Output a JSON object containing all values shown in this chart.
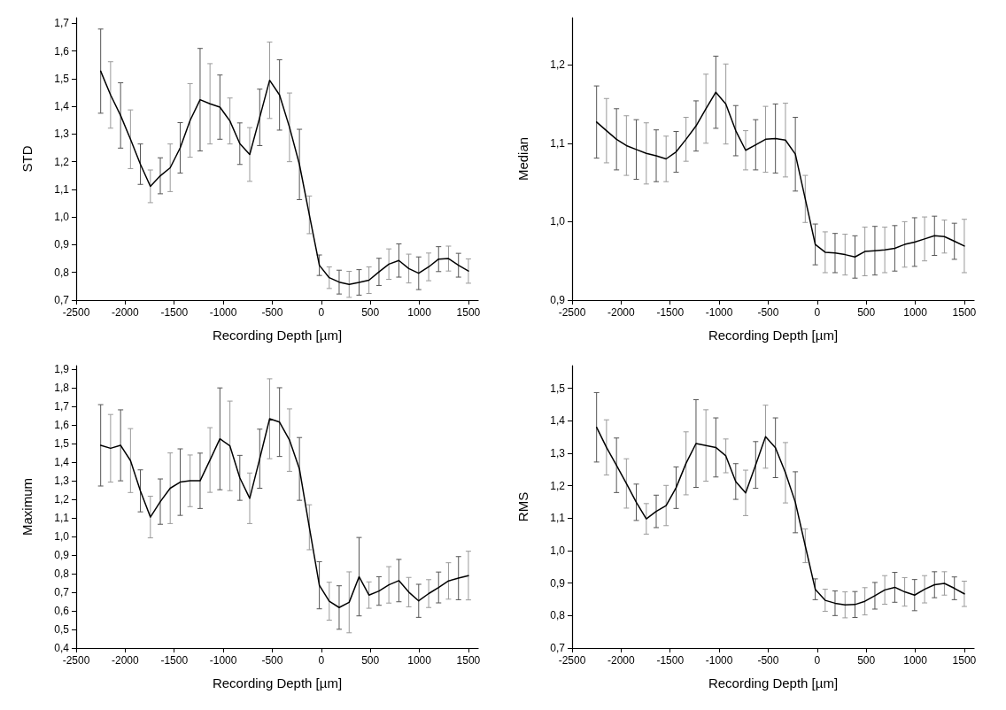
{
  "chart_data": [
    {
      "type": "line",
      "xlabel": "Recording Depth [µm]",
      "ylabel": "STD",
      "x": [
        -2250,
        -2149,
        -2047,
        -1946,
        -1845,
        -1743,
        -1642,
        -1541,
        -1439,
        -1338,
        -1236,
        -1135,
        -1034,
        -932,
        -831,
        -730,
        -628,
        -527,
        -426,
        -324,
        -223,
        -122,
        -20,
        81,
        182,
        284,
        385,
        486,
        588,
        689,
        791,
        892,
        993,
        1095,
        1196,
        1297,
        1399,
        1500
      ],
      "series": [
        {
          "color": "#000000",
          "values": [
            1.527,
            1.441,
            1.367,
            1.281,
            1.191,
            1.111,
            1.149,
            1.178,
            1.25,
            1.349,
            1.424,
            1.409,
            1.397,
            1.347,
            1.265,
            1.226,
            1.36,
            1.494,
            1.441,
            1.324,
            1.19,
            1.008,
            0.826,
            0.781,
            0.765,
            0.757,
            0.764,
            0.772,
            0.802,
            0.83,
            0.843,
            0.814,
            0.797,
            0.82,
            0.848,
            0.85,
            0.826,
            0.805
          ],
          "errors": [
            0.152,
            0.12,
            0.118,
            0.106,
            0.073,
            0.059,
            0.065,
            0.086,
            0.091,
            0.133,
            0.185,
            0.145,
            0.116,
            0.083,
            0.075,
            0.097,
            0.102,
            0.138,
            0.127,
            0.124,
            0.127,
            0.068,
            0.037,
            0.039,
            0.043,
            0.047,
            0.046,
            0.048,
            0.049,
            0.055,
            0.06,
            0.052,
            0.059,
            0.05,
            0.045,
            0.045,
            0.043,
            0.044
          ]
        }
      ],
      "xlim": [
        -2500,
        1600
      ],
      "xticks": [
        -2500,
        -2000,
        -1500,
        -1000,
        -500,
        0,
        500,
        1000,
        1500
      ],
      "ylim": [
        0.7,
        1.72
      ],
      "yticks": [
        {
          "value": 0.7,
          "label": "0,7"
        },
        {
          "value": 0.8,
          "label": "0,8"
        },
        {
          "value": 0.9,
          "label": "0,9"
        },
        {
          "value": 1.0,
          "label": "1,0"
        },
        {
          "value": 1.1,
          "label": "1,1"
        },
        {
          "value": 1.2,
          "label": "1,2"
        },
        {
          "value": 1.3,
          "label": "1,3"
        },
        {
          "value": 1.4,
          "label": "1,4"
        },
        {
          "value": 1.5,
          "label": "1,5"
        },
        {
          "value": 1.6,
          "label": "1,6"
        },
        {
          "value": 1.7,
          "label": "1,7"
        }
      ],
      "grid": false,
      "marker": "none",
      "line_style": "solid"
    },
    {
      "type": "line",
      "xlabel": "Recording Depth [µm]",
      "ylabel": "Median",
      "x": [
        -2250,
        -2149,
        -2047,
        -1946,
        -1845,
        -1743,
        -1642,
        -1541,
        -1439,
        -1338,
        -1236,
        -1135,
        -1034,
        -932,
        -831,
        -730,
        -628,
        -527,
        -426,
        -324,
        -223,
        -122,
        -20,
        81,
        182,
        284,
        385,
        486,
        588,
        689,
        791,
        892,
        993,
        1095,
        1196,
        1297,
        1399,
        1500
      ],
      "series": [
        {
          "color": "#000000",
          "values": [
            1.127,
            1.116,
            1.105,
            1.097,
            1.092,
            1.087,
            1.084,
            1.08,
            1.089,
            1.105,
            1.122,
            1.144,
            1.165,
            1.15,
            1.116,
            1.091,
            1.098,
            1.105,
            1.106,
            1.104,
            1.086,
            1.029,
            0.971,
            0.961,
            0.96,
            0.958,
            0.955,
            0.962,
            0.963,
            0.964,
            0.966,
            0.971,
            0.974,
            0.978,
            0.982,
            0.981,
            0.975,
            0.969
          ],
          "errors": [
            0.046,
            0.041,
            0.039,
            0.038,
            0.038,
            0.039,
            0.033,
            0.029,
            0.026,
            0.028,
            0.032,
            0.044,
            0.046,
            0.051,
            0.032,
            0.025,
            0.032,
            0.042,
            0.044,
            0.047,
            0.047,
            0.03,
            0.026,
            0.026,
            0.025,
            0.026,
            0.027,
            0.031,
            0.031,
            0.029,
            0.029,
            0.029,
            0.031,
            0.028,
            0.025,
            0.021,
            0.023,
            0.034
          ]
        }
      ],
      "xlim": [
        -2500,
        1600
      ],
      "xticks": [
        -2500,
        -2000,
        -1500,
        -1000,
        -500,
        0,
        500,
        1000,
        1500
      ],
      "ylim": [
        0.9,
        1.26
      ],
      "yticks": [
        {
          "value": 0.9,
          "label": "0,9"
        },
        {
          "value": 1.0,
          "label": "1,0"
        },
        {
          "value": 1.1,
          "label": "1,1"
        },
        {
          "value": 1.2,
          "label": "1,2"
        }
      ],
      "grid": false,
      "marker": "none",
      "line_style": "solid"
    },
    {
      "type": "line",
      "xlabel": "Recording Depth [µm]",
      "ylabel": "Maximum",
      "x": [
        -2250,
        -2149,
        -2047,
        -1946,
        -1845,
        -1743,
        -1642,
        -1541,
        -1439,
        -1338,
        -1236,
        -1135,
        -1034,
        -932,
        -831,
        -730,
        -628,
        -527,
        -426,
        -324,
        -223,
        -122,
        -20,
        81,
        182,
        284,
        385,
        486,
        588,
        689,
        791,
        892,
        993,
        1095,
        1196,
        1297,
        1399,
        1500
      ],
      "series": [
        {
          "color": "#000000",
          "values": [
            1.491,
            1.475,
            1.491,
            1.409,
            1.246,
            1.105,
            1.188,
            1.26,
            1.293,
            1.3,
            1.3,
            1.412,
            1.526,
            1.488,
            1.316,
            1.206,
            1.419,
            1.634,
            1.616,
            1.519,
            1.364,
            1.05,
            0.738,
            0.652,
            0.618,
            0.646,
            0.784,
            0.685,
            0.707,
            0.74,
            0.763,
            0.701,
            0.654,
            0.693,
            0.726,
            0.761,
            0.776,
            0.79
          ],
          "errors": [
            0.219,
            0.182,
            0.191,
            0.172,
            0.113,
            0.112,
            0.122,
            0.19,
            0.179,
            0.139,
            0.149,
            0.174,
            0.274,
            0.241,
            0.121,
            0.136,
            0.159,
            0.215,
            0.185,
            0.168,
            0.169,
            0.121,
            0.127,
            0.102,
            0.117,
            0.164,
            0.211,
            0.071,
            0.077,
            0.098,
            0.114,
            0.079,
            0.089,
            0.075,
            0.083,
            0.098,
            0.116,
            0.131
          ]
        }
      ],
      "xlim": [
        -2500,
        1600
      ],
      "xticks": [
        -2500,
        -2000,
        -1500,
        -1000,
        -500,
        0,
        500,
        1000,
        1500
      ],
      "ylim": [
        0.4,
        1.92
      ],
      "yticks": [
        {
          "value": 0.4,
          "label": "0,4"
        },
        {
          "value": 0.5,
          "label": "0,5"
        },
        {
          "value": 0.6,
          "label": "0,6"
        },
        {
          "value": 0.7,
          "label": "0,7"
        },
        {
          "value": 0.8,
          "label": "0,8"
        },
        {
          "value": 0.9,
          "label": "0,9"
        },
        {
          "value": 1.0,
          "label": "1,0"
        },
        {
          "value": 1.1,
          "label": "1,1"
        },
        {
          "value": 1.2,
          "label": "1,2"
        },
        {
          "value": 1.3,
          "label": "1,3"
        },
        {
          "value": 1.4,
          "label": "1,4"
        },
        {
          "value": 1.5,
          "label": "1,5"
        },
        {
          "value": 1.6,
          "label": "1,6"
        },
        {
          "value": 1.7,
          "label": "1,7"
        },
        {
          "value": 1.8,
          "label": "1,8"
        },
        {
          "value": 1.9,
          "label": "1,9"
        }
      ],
      "grid": false,
      "marker": "none",
      "line_style": "solid"
    },
    {
      "type": "line",
      "xlabel": "Recording Depth [µm]",
      "ylabel": "RMS",
      "x": [
        -2250,
        -2149,
        -2047,
        -1946,
        -1845,
        -1743,
        -1642,
        -1541,
        -1439,
        -1338,
        -1236,
        -1135,
        -1034,
        -932,
        -831,
        -730,
        -628,
        -527,
        -426,
        -324,
        -223,
        -122,
        -20,
        81,
        182,
        284,
        385,
        486,
        588,
        689,
        791,
        892,
        993,
        1095,
        1196,
        1297,
        1399,
        1500
      ],
      "series": [
        {
          "color": "#000000",
          "values": [
            1.38,
            1.318,
            1.263,
            1.207,
            1.149,
            1.098,
            1.121,
            1.139,
            1.194,
            1.269,
            1.33,
            1.324,
            1.318,
            1.292,
            1.213,
            1.178,
            1.264,
            1.351,
            1.317,
            1.24,
            1.149,
            1.015,
            0.881,
            0.847,
            0.838,
            0.833,
            0.834,
            0.844,
            0.861,
            0.879,
            0.887,
            0.873,
            0.863,
            0.881,
            0.895,
            0.899,
            0.884,
            0.867
          ],
          "errors": [
            0.107,
            0.085,
            0.084,
            0.076,
            0.056,
            0.047,
            0.05,
            0.062,
            0.064,
            0.097,
            0.135,
            0.11,
            0.091,
            0.052,
            0.055,
            0.07,
            0.072,
            0.097,
            0.092,
            0.093,
            0.094,
            0.052,
            0.032,
            0.034,
            0.038,
            0.04,
            0.04,
            0.042,
            0.041,
            0.044,
            0.046,
            0.044,
            0.048,
            0.042,
            0.04,
            0.036,
            0.035,
            0.039
          ]
        }
      ],
      "xlim": [
        -2500,
        1600
      ],
      "xticks": [
        -2500,
        -2000,
        -1500,
        -1000,
        -500,
        0,
        500,
        1000,
        1500
      ],
      "ylim": [
        0.7,
        1.57
      ],
      "yticks": [
        {
          "value": 0.7,
          "label": "0,7"
        },
        {
          "value": 0.8,
          "label": "0,8"
        },
        {
          "value": 0.9,
          "label": "0,9"
        },
        {
          "value": 1.0,
          "label": "1,0"
        },
        {
          "value": 1.1,
          "label": "1,1"
        },
        {
          "value": 1.2,
          "label": "1,2"
        },
        {
          "value": 1.3,
          "label": "1,3"
        },
        {
          "value": 1.4,
          "label": "1,4"
        },
        {
          "value": 1.5,
          "label": "1,5"
        }
      ],
      "grid": false,
      "marker": "none",
      "line_style": "solid"
    }
  ]
}
